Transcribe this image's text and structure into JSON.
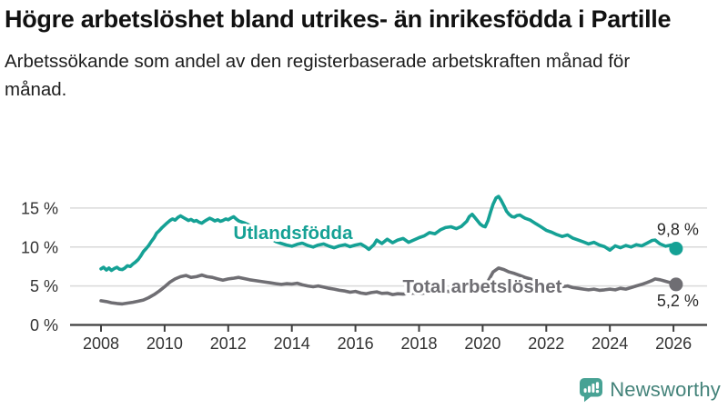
{
  "header": {
    "title": "Högre arbetslöshet bland utrikes- än inrikesfödda i Partille",
    "subtitle": "Arbetssökande som andel av den registerbaserade arbetskraften månad för månad."
  },
  "footer": {
    "brand": "Newsworthy",
    "brand_color": "#44837a",
    "icon_color": "#47a294"
  },
  "chart_data": {
    "type": "line",
    "title": "Högre arbetslöshet bland utrikes- än inrikesfödda i Partille",
    "xlabel": "",
    "ylabel": "",
    "grid": true,
    "legend_position": "inline-labels",
    "x_axis": {
      "ticks": [
        2008,
        2010,
        2012,
        2014,
        2016,
        2018,
        2020,
        2022,
        2024,
        2026
      ],
      "range": [
        2007.8,
        2027.2
      ]
    },
    "y_axis": {
      "ticks": [
        0,
        5,
        10,
        15
      ],
      "tick_suffix": " %",
      "range": [
        0,
        17.5
      ]
    },
    "series": [
      {
        "name": "Utlandsfödda",
        "color": "#15a195",
        "end_label": "9,8 %",
        "end_value": 9.8,
        "points": [
          [
            2008,
            7.2
          ],
          [
            2008.08,
            7.4
          ],
          [
            2008.17,
            7.05
          ],
          [
            2008.25,
            7.3
          ],
          [
            2008.33,
            7.0
          ],
          [
            2008.42,
            7.25
          ],
          [
            2008.5,
            7.4
          ],
          [
            2008.58,
            7.15
          ],
          [
            2008.67,
            7.1
          ],
          [
            2008.75,
            7.3
          ],
          [
            2008.83,
            7.6
          ],
          [
            2008.92,
            7.5
          ],
          [
            2009,
            7.8
          ],
          [
            2009.08,
            8.05
          ],
          [
            2009.17,
            8.4
          ],
          [
            2009.25,
            8.85
          ],
          [
            2009.33,
            9.4
          ],
          [
            2009.42,
            9.8
          ],
          [
            2009.5,
            10.2
          ],
          [
            2009.58,
            10.7
          ],
          [
            2009.67,
            11.2
          ],
          [
            2009.75,
            11.8
          ],
          [
            2009.83,
            12.1
          ],
          [
            2009.92,
            12.5
          ],
          [
            2010,
            12.8
          ],
          [
            2010.08,
            13.1
          ],
          [
            2010.17,
            13.4
          ],
          [
            2010.25,
            13.6
          ],
          [
            2010.33,
            13.45
          ],
          [
            2010.42,
            13.8
          ],
          [
            2010.5,
            14.0
          ],
          [
            2010.58,
            13.8
          ],
          [
            2010.67,
            13.6
          ],
          [
            2010.75,
            13.4
          ],
          [
            2010.83,
            13.55
          ],
          [
            2010.92,
            13.3
          ],
          [
            2011,
            13.4
          ],
          [
            2011.08,
            13.2
          ],
          [
            2011.17,
            13.05
          ],
          [
            2011.25,
            13.3
          ],
          [
            2011.33,
            13.5
          ],
          [
            2011.42,
            13.7
          ],
          [
            2011.5,
            13.55
          ],
          [
            2011.58,
            13.35
          ],
          [
            2011.67,
            13.5
          ],
          [
            2011.75,
            13.3
          ],
          [
            2011.83,
            13.4
          ],
          [
            2011.92,
            13.6
          ],
          [
            2012,
            13.5
          ],
          [
            2012.08,
            13.7
          ],
          [
            2012.17,
            13.9
          ],
          [
            2012.25,
            13.6
          ],
          [
            2012.33,
            13.35
          ],
          [
            2012.5,
            13.1
          ],
          [
            2012.67,
            12.8
          ],
          [
            2012.83,
            12.4
          ],
          [
            2013,
            12.0
          ],
          [
            2013.17,
            11.6
          ],
          [
            2013.33,
            11.1
          ],
          [
            2013.5,
            10.7
          ],
          [
            2013.67,
            10.45
          ],
          [
            2013.83,
            10.25
          ],
          [
            2014,
            10.1
          ],
          [
            2014.17,
            10.35
          ],
          [
            2014.33,
            10.5
          ],
          [
            2014.5,
            10.2
          ],
          [
            2014.67,
            10.0
          ],
          [
            2014.83,
            10.25
          ],
          [
            2015,
            10.4
          ],
          [
            2015.17,
            10.1
          ],
          [
            2015.33,
            9.9
          ],
          [
            2015.5,
            10.15
          ],
          [
            2015.67,
            10.3
          ],
          [
            2015.83,
            10.05
          ],
          [
            2016,
            10.25
          ],
          [
            2016.17,
            10.4
          ],
          [
            2016.33,
            10.0
          ],
          [
            2016.42,
            9.7
          ],
          [
            2016.58,
            10.3
          ],
          [
            2016.67,
            10.9
          ],
          [
            2016.83,
            10.45
          ],
          [
            2017,
            11.0
          ],
          [
            2017.17,
            10.55
          ],
          [
            2017.33,
            10.9
          ],
          [
            2017.5,
            11.1
          ],
          [
            2017.67,
            10.6
          ],
          [
            2017.83,
            10.9
          ],
          [
            2018,
            11.2
          ],
          [
            2018.17,
            11.45
          ],
          [
            2018.33,
            11.85
          ],
          [
            2018.5,
            11.7
          ],
          [
            2018.67,
            12.2
          ],
          [
            2018.83,
            12.5
          ],
          [
            2019,
            12.6
          ],
          [
            2019.17,
            12.35
          ],
          [
            2019.33,
            12.65
          ],
          [
            2019.5,
            13.3
          ],
          [
            2019.58,
            13.9
          ],
          [
            2019.67,
            14.2
          ],
          [
            2019.75,
            13.8
          ],
          [
            2019.83,
            13.4
          ],
          [
            2019.92,
            12.95
          ],
          [
            2020,
            12.7
          ],
          [
            2020.08,
            12.6
          ],
          [
            2020.17,
            13.4
          ],
          [
            2020.25,
            14.5
          ],
          [
            2020.33,
            15.5
          ],
          [
            2020.42,
            16.3
          ],
          [
            2020.5,
            16.5
          ],
          [
            2020.58,
            16.0
          ],
          [
            2020.67,
            15.3
          ],
          [
            2020.75,
            14.6
          ],
          [
            2020.83,
            14.2
          ],
          [
            2020.92,
            13.9
          ],
          [
            2021,
            13.85
          ],
          [
            2021.08,
            14.05
          ],
          [
            2021.17,
            14.1
          ],
          [
            2021.25,
            13.9
          ],
          [
            2021.33,
            13.7
          ],
          [
            2021.5,
            13.45
          ],
          [
            2021.67,
            13.0
          ],
          [
            2021.83,
            12.6
          ],
          [
            2022,
            12.15
          ],
          [
            2022.17,
            11.9
          ],
          [
            2022.33,
            11.6
          ],
          [
            2022.5,
            11.35
          ],
          [
            2022.67,
            11.55
          ],
          [
            2022.83,
            11.15
          ],
          [
            2023,
            10.9
          ],
          [
            2023.17,
            10.65
          ],
          [
            2023.33,
            10.4
          ],
          [
            2023.5,
            10.6
          ],
          [
            2023.67,
            10.25
          ],
          [
            2023.83,
            10.05
          ],
          [
            2024,
            9.6
          ],
          [
            2024.17,
            10.15
          ],
          [
            2024.33,
            9.9
          ],
          [
            2024.5,
            10.2
          ],
          [
            2024.67,
            10.0
          ],
          [
            2024.83,
            10.3
          ],
          [
            2025,
            10.15
          ],
          [
            2025.17,
            10.5
          ],
          [
            2025.33,
            10.85
          ],
          [
            2025.42,
            10.9
          ],
          [
            2025.58,
            10.4
          ],
          [
            2025.75,
            10.1
          ],
          [
            2025.92,
            10.25
          ],
          [
            2026.08,
            9.8
          ]
        ]
      },
      {
        "name": "Total arbetslöshet",
        "color": "#6f6e73",
        "end_label": "5,2 %",
        "end_value": 5.2,
        "points": [
          [
            2008,
            3.1
          ],
          [
            2008.17,
            3.0
          ],
          [
            2008.33,
            2.85
          ],
          [
            2008.5,
            2.75
          ],
          [
            2008.67,
            2.7
          ],
          [
            2008.83,
            2.8
          ],
          [
            2009,
            2.9
          ],
          [
            2009.17,
            3.05
          ],
          [
            2009.33,
            3.2
          ],
          [
            2009.5,
            3.5
          ],
          [
            2009.67,
            3.9
          ],
          [
            2009.83,
            4.35
          ],
          [
            2010,
            4.9
          ],
          [
            2010.17,
            5.5
          ],
          [
            2010.33,
            5.9
          ],
          [
            2010.5,
            6.2
          ],
          [
            2010.67,
            6.35
          ],
          [
            2010.83,
            6.1
          ],
          [
            2011,
            6.2
          ],
          [
            2011.17,
            6.4
          ],
          [
            2011.33,
            6.2
          ],
          [
            2011.5,
            6.1
          ],
          [
            2011.67,
            5.9
          ],
          [
            2011.83,
            5.75
          ],
          [
            2012,
            5.9
          ],
          [
            2012.17,
            6.0
          ],
          [
            2012.33,
            6.1
          ],
          [
            2012.5,
            5.95
          ],
          [
            2012.67,
            5.8
          ],
          [
            2012.83,
            5.7
          ],
          [
            2013,
            5.6
          ],
          [
            2013.17,
            5.5
          ],
          [
            2013.33,
            5.4
          ],
          [
            2013.5,
            5.3
          ],
          [
            2013.67,
            5.2
          ],
          [
            2013.83,
            5.3
          ],
          [
            2014,
            5.25
          ],
          [
            2014.17,
            5.35
          ],
          [
            2014.33,
            5.15
          ],
          [
            2014.5,
            5.0
          ],
          [
            2014.67,
            4.9
          ],
          [
            2014.83,
            5.0
          ],
          [
            2015,
            4.85
          ],
          [
            2015.17,
            4.7
          ],
          [
            2015.33,
            4.6
          ],
          [
            2015.5,
            4.45
          ],
          [
            2015.67,
            4.35
          ],
          [
            2015.83,
            4.2
          ],
          [
            2016,
            4.3
          ],
          [
            2016.17,
            4.1
          ],
          [
            2016.33,
            4.0
          ],
          [
            2016.5,
            4.15
          ],
          [
            2016.67,
            4.25
          ],
          [
            2016.83,
            4.05
          ],
          [
            2017,
            4.1
          ],
          [
            2017.17,
            3.9
          ],
          [
            2017.33,
            4.0
          ],
          [
            2017.5,
            3.95
          ],
          [
            2017.67,
            4.05
          ],
          [
            2017.83,
            4.1
          ],
          [
            2018,
            4.0
          ],
          [
            2018.17,
            4.1
          ],
          [
            2018.33,
            4.2
          ],
          [
            2018.5,
            4.1
          ],
          [
            2018.67,
            4.2
          ],
          [
            2018.83,
            4.3
          ],
          [
            2019,
            4.3
          ],
          [
            2019.17,
            4.4
          ],
          [
            2019.33,
            4.5
          ],
          [
            2019.5,
            4.4
          ],
          [
            2019.67,
            4.5
          ],
          [
            2019.83,
            4.6
          ],
          [
            2020,
            4.8
          ],
          [
            2020.17,
            5.6
          ],
          [
            2020.33,
            6.8
          ],
          [
            2020.5,
            7.3
          ],
          [
            2020.67,
            7.1
          ],
          [
            2020.83,
            6.8
          ],
          [
            2021,
            6.6
          ],
          [
            2021.17,
            6.35
          ],
          [
            2021.33,
            6.1
          ],
          [
            2021.5,
            5.9
          ],
          [
            2021.67,
            5.65
          ],
          [
            2021.83,
            5.45
          ],
          [
            2022,
            5.2
          ],
          [
            2022.17,
            5.1
          ],
          [
            2022.33,
            5.0
          ],
          [
            2022.5,
            4.9
          ],
          [
            2022.67,
            5.0
          ],
          [
            2022.83,
            4.8
          ],
          [
            2023,
            4.7
          ],
          [
            2023.17,
            4.6
          ],
          [
            2023.33,
            4.5
          ],
          [
            2023.5,
            4.6
          ],
          [
            2023.67,
            4.45
          ],
          [
            2023.83,
            4.5
          ],
          [
            2024,
            4.6
          ],
          [
            2024.17,
            4.5
          ],
          [
            2024.33,
            4.7
          ],
          [
            2024.5,
            4.6
          ],
          [
            2024.67,
            4.8
          ],
          [
            2024.83,
            5.0
          ],
          [
            2025,
            5.2
          ],
          [
            2025.17,
            5.45
          ],
          [
            2025.33,
            5.7
          ],
          [
            2025.42,
            5.9
          ],
          [
            2025.58,
            5.8
          ],
          [
            2025.75,
            5.6
          ],
          [
            2025.92,
            5.4
          ],
          [
            2026.08,
            5.2
          ]
        ]
      }
    ]
  }
}
